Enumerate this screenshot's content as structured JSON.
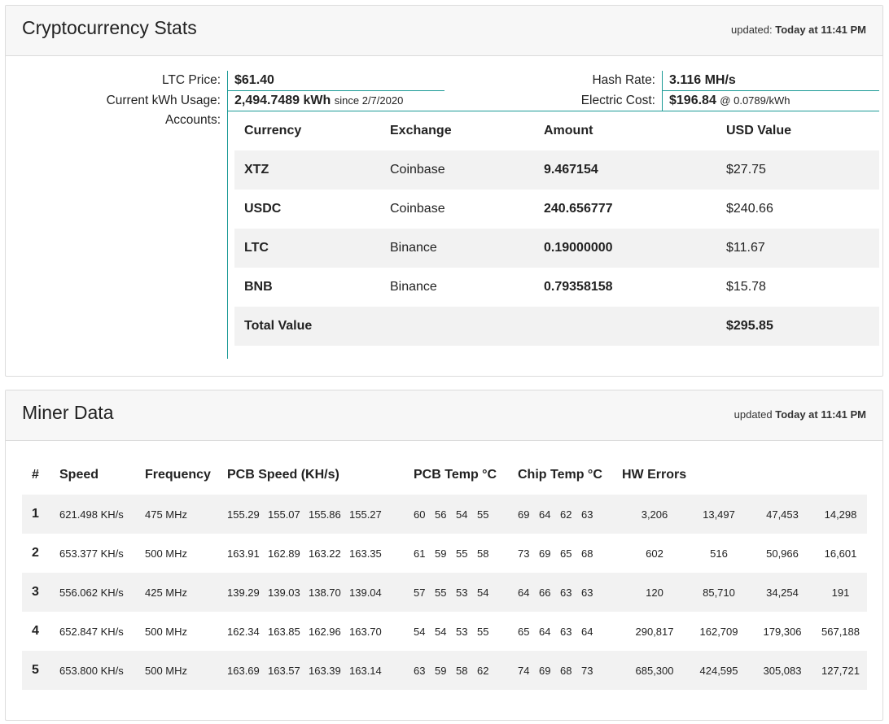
{
  "stats_panel": {
    "title": "Cryptocurrency Stats",
    "updated_prefix": "updated:",
    "updated_time": "Today at 11:41 PM",
    "ltc_price_label": "LTC Price:",
    "ltc_price": "$61.40",
    "kwh_label": "Current kWh Usage:",
    "kwh_value": "2,494.7489 kWh",
    "kwh_since": "since 2/7/2020",
    "accounts_label": "Accounts:",
    "hash_rate_label": "Hash Rate:",
    "hash_rate": "3.116 MH/s",
    "electric_cost_label": "Electric Cost:",
    "electric_cost": "$196.84",
    "electric_rate": "@ 0.0789/kWh",
    "accounts_headers": [
      "Currency",
      "Exchange",
      "Amount",
      "USD Value"
    ],
    "accounts": [
      {
        "currency": "XTZ",
        "exchange": "Coinbase",
        "amount": "9.467154",
        "usd": "$27.75"
      },
      {
        "currency": "USDC",
        "exchange": "Coinbase",
        "amount": "240.656777",
        "usd": "$240.66"
      },
      {
        "currency": "LTC",
        "exchange": "Binance",
        "amount": "0.19000000",
        "usd": "$11.67"
      },
      {
        "currency": "BNB",
        "exchange": "Binance",
        "amount": "0.79358158",
        "usd": "$15.78"
      }
    ],
    "total_label": "Total Value",
    "total_value": "$295.85"
  },
  "miner_panel": {
    "title": "Miner Data",
    "updated_prefix": "updated",
    "updated_time": "Today at 11:41 PM",
    "headers": [
      "#",
      "Speed",
      "Frequency",
      "PCB Speed (KH/s)",
      "PCB Temp °C",
      "Chip Temp °C",
      "HW Errors"
    ],
    "rows": [
      {
        "id": "1",
        "speed": "621.498 KH/s",
        "freq": "475 MHz",
        "pcb": [
          "155.29",
          "155.07",
          "155.86",
          "155.27"
        ],
        "pcb_temp": [
          "60",
          "56",
          "54",
          "55"
        ],
        "chip_temp": [
          "69",
          "64",
          "62",
          "63"
        ],
        "hw": [
          "3,206",
          "13,497",
          "47,453",
          "14,298"
        ]
      },
      {
        "id": "2",
        "speed": "653.377 KH/s",
        "freq": "500 MHz",
        "pcb": [
          "163.91",
          "162.89",
          "163.22",
          "163.35"
        ],
        "pcb_temp": [
          "61",
          "59",
          "55",
          "58"
        ],
        "chip_temp": [
          "73",
          "69",
          "65",
          "68"
        ],
        "hw": [
          "602",
          "516",
          "50,966",
          "16,601"
        ]
      },
      {
        "id": "3",
        "speed": "556.062 KH/s",
        "freq": "425 MHz",
        "pcb": [
          "139.29",
          "139.03",
          "138.70",
          "139.04"
        ],
        "pcb_temp": [
          "57",
          "55",
          "53",
          "54"
        ],
        "chip_temp": [
          "64",
          "66",
          "63",
          "63"
        ],
        "hw": [
          "120",
          "85,710",
          "34,254",
          "191"
        ]
      },
      {
        "id": "4",
        "speed": "652.847 KH/s",
        "freq": "500 MHz",
        "pcb": [
          "162.34",
          "163.85",
          "162.96",
          "163.70"
        ],
        "pcb_temp": [
          "54",
          "54",
          "53",
          "55"
        ],
        "chip_temp": [
          "65",
          "64",
          "63",
          "64"
        ],
        "hw": [
          "290,817",
          "162,709",
          "179,306",
          "567,188"
        ]
      },
      {
        "id": "5",
        "speed": "653.800 KH/s",
        "freq": "500 MHz",
        "pcb": [
          "163.69",
          "163.57",
          "163.39",
          "163.14"
        ],
        "pcb_temp": [
          "63",
          "59",
          "58",
          "62"
        ],
        "chip_temp": [
          "74",
          "69",
          "68",
          "73"
        ],
        "hw": [
          "685,300",
          "424,595",
          "305,083",
          "127,721"
        ]
      }
    ]
  }
}
